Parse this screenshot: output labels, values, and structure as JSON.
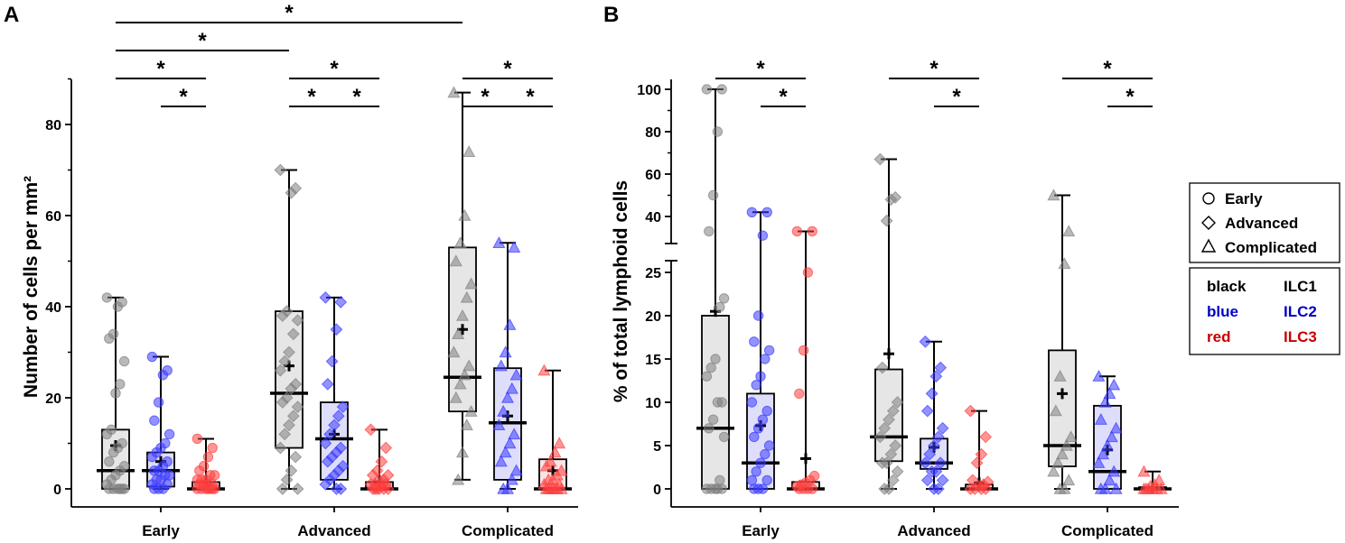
{
  "panels": [
    {
      "label": "A",
      "ylabel": "Number of cells per mm²",
      "ylim": [
        0,
        90
      ],
      "yticks": [
        0,
        20,
        40,
        60,
        80
      ],
      "categories": [
        "Early",
        "Advanced",
        "Complicated"
      ],
      "series": [
        {
          "name": "ILC1",
          "color": "#808080",
          "fill": "#e6e6e6",
          "groups": [
            {
              "min": 0,
              "q1": 0,
              "median": 4,
              "q3": 13,
              "max": 42,
              "mean": 9.5
            },
            {
              "min": 0,
              "q1": 9,
              "median": 21,
              "q3": 39,
              "max": 70,
              "mean": 27
            },
            {
              "min": 2,
              "q1": 17,
              "median": 24.5,
              "q3": 53,
              "max": 87,
              "mean": 35
            }
          ]
        },
        {
          "name": "ILC2",
          "color": "#3a3aff",
          "fill": "#dedefa",
          "groups": [
            {
              "min": 0,
              "q1": 0.5,
              "median": 4,
              "q3": 8,
              "max": 29,
              "mean": 6
            },
            {
              "min": 0,
              "q1": 2,
              "median": 11,
              "q3": 19,
              "max": 42,
              "mean": 12
            },
            {
              "min": 0,
              "q1": 2,
              "median": 14.5,
              "q3": 26.5,
              "max": 54,
              "mean": 16
            }
          ]
        },
        {
          "name": "ILC3",
          "color": "#ff4040",
          "fill": "#fbe3e3",
          "groups": [
            {
              "min": 0,
              "q1": 0,
              "median": 0,
              "q3": 1.5,
              "max": 11,
              "mean": 1.5
            },
            {
              "min": 0,
              "q1": 0,
              "median": 0,
              "q3": 1.5,
              "max": 13,
              "mean": 1.5
            },
            {
              "min": 0,
              "q1": 0,
              "median": 0,
              "q3": 6.5,
              "max": 26,
              "mean": 4
            }
          ]
        }
      ],
      "points": [
        [
          [
            42,
            41,
            40,
            34,
            33,
            28,
            23,
            21,
            13,
            12,
            10,
            9,
            8,
            6,
            5,
            4,
            3,
            2,
            1,
            0,
            0,
            0,
            0,
            0,
            0
          ],
          [
            70,
            66,
            65,
            39,
            38,
            37,
            34,
            30,
            28,
            26,
            23,
            22,
            20,
            19,
            18,
            16,
            14,
            12,
            9,
            7,
            4,
            2,
            0,
            0
          ],
          [
            87,
            74,
            60,
            54,
            50,
            45,
            42,
            38,
            34,
            30,
            27,
            25,
            23,
            20,
            17,
            14,
            8,
            2
          ]
        ],
        [
          [
            29,
            26,
            25,
            19,
            15,
            12,
            10,
            9,
            8,
            7,
            6,
            5,
            4,
            4,
            3,
            3,
            2,
            2,
            1,
            1,
            0,
            0,
            0
          ],
          [
            42,
            41,
            35,
            28,
            23,
            18,
            16,
            14,
            12,
            10,
            9,
            8,
            7,
            6,
            5,
            4,
            3,
            2,
            1,
            0,
            0
          ],
          [
            54,
            53,
            36,
            30,
            27,
            25,
            22,
            20,
            17,
            14,
            12,
            10,
            8,
            6,
            4,
            2,
            0,
            0
          ]
        ],
        [
          [
            11,
            9,
            7,
            5,
            4,
            3,
            3,
            2,
            2,
            2,
            1,
            1,
            1,
            1,
            0,
            0,
            0,
            0,
            0,
            0,
            0
          ],
          [
            13,
            9,
            6,
            4,
            3,
            3,
            2,
            2,
            1,
            1,
            1,
            1,
            0,
            0,
            0,
            0,
            0,
            0
          ],
          [
            26,
            10,
            8,
            6,
            5,
            4,
            3,
            2,
            2,
            1,
            1,
            0,
            0,
            0,
            0,
            0,
            0,
            0
          ]
        ]
      ],
      "brackets": [
        {
          "from": [
            0,
            0
          ],
          "to": [
            2,
            0
          ],
          "level": 5,
          "label": "*"
        },
        {
          "from": [
            0,
            0
          ],
          "to": [
            1,
            0
          ],
          "level": 4,
          "label": "*"
        },
        {
          "from": [
            0,
            0
          ],
          "to": [
            0,
            2
          ],
          "level": 3,
          "label": "*"
        },
        {
          "from": [
            0,
            1
          ],
          "to": [
            0,
            2
          ],
          "level": 2,
          "label": "*"
        },
        {
          "from": [
            1,
            0
          ],
          "to": [
            1,
            2
          ],
          "level": 3,
          "label": "*"
        },
        {
          "from": [
            1,
            0
          ],
          "to": [
            1,
            1
          ],
          "level": 2,
          "label": "*"
        },
        {
          "from": [
            1,
            1
          ],
          "to": [
            1,
            2
          ],
          "level": 2,
          "label": "*"
        },
        {
          "from": [
            2,
            0
          ],
          "to": [
            2,
            2
          ],
          "level": 3,
          "label": "*"
        },
        {
          "from": [
            2,
            0
          ],
          "to": [
            2,
            1
          ],
          "level": 2,
          "label": "*"
        },
        {
          "from": [
            2,
            1
          ],
          "to": [
            2,
            2
          ],
          "level": 2,
          "label": "*"
        }
      ]
    },
    {
      "label": "B",
      "ylabel": "% of total lymphoid cells",
      "lower_ylim": [
        0,
        26
      ],
      "upper_ylim": [
        27,
        100
      ],
      "lower_yticks": [
        0,
        5,
        10,
        15,
        20,
        25
      ],
      "upper_yticks": [
        40,
        60,
        80,
        100
      ],
      "categories": [
        "Early",
        "Advanced",
        "Complicated"
      ],
      "series": [
        {
          "name": "ILC1",
          "color": "#808080",
          "fill": "#e6e6e6",
          "groups": [
            {
              "min": 0,
              "q1": 0,
              "median": 7,
              "q3": 20,
              "max": 100,
              "mean": 20.5
            },
            {
              "min": 0,
              "q1": 3.2,
              "median": 6,
              "q3": 13.8,
              "max": 67,
              "mean": 15.6
            },
            {
              "min": 0,
              "q1": 2.6,
              "median": 5,
              "q3": 16,
              "max": 50,
              "mean": 11
            }
          ]
        },
        {
          "name": "ILC2",
          "color": "#3a3aff",
          "fill": "#dedefa",
          "groups": [
            {
              "min": 0,
              "q1": 0,
              "median": 3,
              "q3": 11,
              "max": 42,
              "mean": 7.3
            },
            {
              "min": 0,
              "q1": 2.3,
              "median": 3,
              "q3": 5.8,
              "max": 17,
              "mean": 4.8
            },
            {
              "min": 0,
              "q1": 0,
              "median": 2,
              "q3": 9.6,
              "max": 13,
              "mean": 4.5
            }
          ]
        },
        {
          "name": "ILC3",
          "color": "#ff4040",
          "fill": "#fbe3e3",
          "groups": [
            {
              "min": 0,
              "q1": 0,
              "median": 0,
              "q3": 0.8,
              "max": 33,
              "mean": 3.5
            },
            {
              "min": 0,
              "q1": 0,
              "median": 0,
              "q3": 0.5,
              "max": 9,
              "mean": 0.7
            },
            {
              "min": 0,
              "q1": 0,
              "median": 0,
              "q3": 0.2,
              "max": 2,
              "mean": 0.1
            }
          ]
        }
      ],
      "points": [
        [
          [
            100,
            100,
            80,
            50,
            33,
            22,
            21,
            15,
            14,
            13,
            10,
            10,
            8,
            7,
            6,
            1,
            0,
            0,
            0,
            0,
            0
          ],
          [
            67,
            49,
            48,
            38,
            14,
            10,
            9,
            8,
            7,
            6,
            5,
            4,
            3,
            3,
            2,
            1,
            0,
            0
          ],
          [
            50,
            33,
            26,
            13,
            9,
            6,
            5,
            4,
            3,
            2,
            1,
            0,
            0
          ]
        ],
        [
          [
            42,
            42,
            31,
            20,
            17,
            16,
            15,
            13,
            12,
            10,
            9,
            8,
            7,
            6,
            5,
            4,
            3,
            2,
            1,
            1,
            0,
            0,
            0
          ],
          [
            17,
            14,
            13,
            11,
            9,
            7,
            6,
            5,
            4,
            3,
            3,
            2,
            2,
            1,
            1,
            0,
            0
          ],
          [
            13,
            12,
            11,
            10,
            8,
            7,
            6,
            5,
            4,
            3,
            2,
            1,
            0,
            0,
            0
          ]
        ],
        [
          [
            33,
            33,
            25,
            16,
            11,
            1.5,
            1,
            0.7,
            0.5,
            0.3,
            0,
            0,
            0,
            0
          ],
          [
            9,
            6,
            4,
            3,
            1,
            0.8,
            0.5,
            0.3,
            0,
            0,
            0,
            0
          ],
          [
            2,
            1,
            0.5,
            0.3,
            0,
            0,
            0,
            0,
            0,
            0
          ]
        ]
      ],
      "brackets": [
        {
          "from": [
            0,
            0
          ],
          "to": [
            0,
            2
          ],
          "level": 2,
          "label": "*"
        },
        {
          "from": [
            0,
            1
          ],
          "to": [
            0,
            2
          ],
          "level": 1,
          "label": "*"
        },
        {
          "from": [
            1,
            0
          ],
          "to": [
            1,
            2
          ],
          "level": 2,
          "label": "*"
        },
        {
          "from": [
            1,
            1
          ],
          "to": [
            1,
            2
          ],
          "level": 1,
          "label": "*"
        },
        {
          "from": [
            2,
            0
          ],
          "to": [
            2,
            2
          ],
          "level": 2,
          "label": "*"
        },
        {
          "from": [
            2,
            1
          ],
          "to": [
            2,
            2
          ],
          "level": 1,
          "label": "*"
        }
      ]
    }
  ],
  "legend": {
    "shapes": [
      {
        "symbol": "circle",
        "label": "Early"
      },
      {
        "symbol": "diamond",
        "label": "Advanced"
      },
      {
        "symbol": "triangle",
        "label": "Complicated"
      }
    ],
    "colors": [
      {
        "name": "black",
        "cell": "ILC1",
        "color": "#000000"
      },
      {
        "name": "blue",
        "cell": "ILC2",
        "color": "#0000c8"
      },
      {
        "name": "red",
        "cell": "ILC3",
        "color": "#c80000"
      }
    ]
  },
  "chart_data": [
    {
      "type": "box",
      "title": "A",
      "ylabel": "Number of cells per mm²",
      "categories": [
        "Early",
        "Advanced",
        "Complicated"
      ],
      "series": [
        "ILC1",
        "ILC2",
        "ILC3"
      ],
      "ylim": [
        0,
        90
      ]
    },
    {
      "type": "box",
      "title": "B",
      "ylabel": "% of total lymphoid cells",
      "categories": [
        "Early",
        "Advanced",
        "Complicated"
      ],
      "series": [
        "ILC1",
        "ILC2",
        "ILC3"
      ],
      "ylim": [
        0,
        100
      ],
      "axis_break": [
        26,
        27
      ]
    }
  ]
}
